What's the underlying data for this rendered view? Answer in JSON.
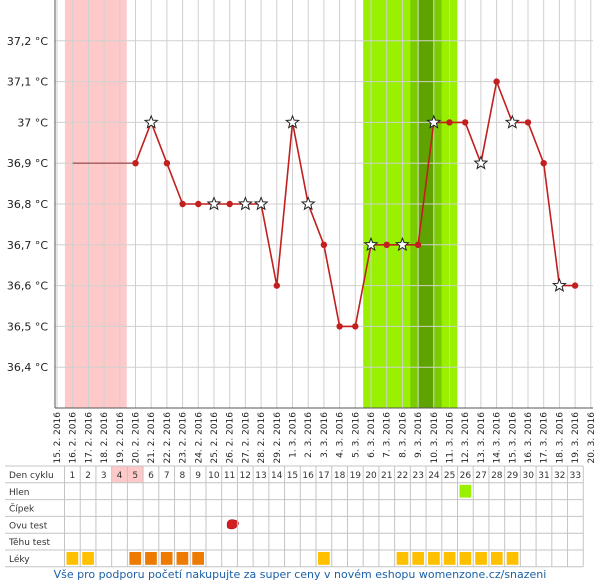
{
  "colors": {
    "line": "#c21f1f",
    "menstruation": "#ffc9c9",
    "fertile": "#99f000",
    "fertile_dark": "#7acc00",
    "fertile_darker": "#5fa300",
    "med": "#ffc000",
    "med_dark": "#ef7a00",
    "hien": "#99f000",
    "grid": "#d0d0d0"
  },
  "chart_data": {
    "type": "line",
    "ylim": [
      36.3,
      37.3
    ],
    "y_ticks": [
      "36,4 °C",
      "36,5 °C",
      "36,6 °C",
      "36,7 °C",
      "36,8 °C",
      "36,9 °C",
      "37 °C",
      "37,1 °C",
      "37,2 °C"
    ],
    "dates": [
      "15. 2. 2016",
      "16. 2. 2016",
      "17. 2. 2016",
      "18. 2. 2016",
      "19. 2. 2016",
      "20. 2. 2016",
      "21. 2. 2016",
      "22. 2. 2016",
      "23. 2. 2016",
      "24. 2. 2016",
      "25. 2. 2016",
      "26. 2. 2016",
      "27. 2. 2016",
      "28. 2. 2016",
      "29. 2. 2016",
      "1. 3. 2016",
      "2. 3. 2016",
      "3. 3. 2016",
      "4. 3. 2016",
      "5. 3. 2016",
      "6. 3. 2016",
      "7. 3. 2016",
      "8. 3. 2016",
      "9. 3. 2016",
      "10. 3. 2016",
      "11. 3. 2016",
      "12. 3. 2016",
      "13. 3. 2016",
      "14. 3. 2016",
      "15. 3. 2016",
      "16. 3. 2016",
      "17. 3. 2016",
      "18. 3. 2016",
      "19. 3. 2016",
      "20. 3. 2016"
    ],
    "temps": [
      null,
      36.9,
      36.9,
      36.9,
      36.9,
      36.9,
      37.0,
      36.9,
      36.8,
      36.8,
      36.8,
      36.8,
      36.8,
      36.8,
      36.6,
      37.0,
      36.8,
      36.7,
      36.5,
      36.5,
      36.7,
      36.7,
      36.7,
      36.7,
      37.0,
      37.0,
      37.0,
      36.9,
      37.1,
      37.0,
      37.0,
      36.9,
      36.6,
      36.6,
      null
    ],
    "star_days": [
      6,
      10,
      12,
      13,
      15,
      16,
      20,
      22,
      24,
      27,
      29,
      32
    ],
    "dot_days": [
      5,
      7,
      8,
      9,
      11,
      14,
      17,
      18,
      19,
      21,
      23,
      25,
      26,
      28,
      30,
      31,
      33
    ],
    "flat_segment_days": [
      1,
      5
    ],
    "menstruation_range": [
      1,
      4
    ],
    "fertile_range": [
      20,
      25
    ],
    "fertile_dark_range": [
      23,
      24
    ]
  },
  "table": {
    "rows": [
      "Den cyklu",
      "Hlen",
      "Čípek",
      "Ovu test",
      "Těhu test",
      "Léky"
    ],
    "cycle_days": [
      "1",
      "2",
      "3",
      "4",
      "5",
      "6",
      "7",
      "8",
      "9",
      "10",
      "11",
      "12",
      "13",
      "14",
      "15",
      "16",
      "17",
      "18",
      "19",
      "20",
      "21",
      "22",
      "23",
      "24",
      "25",
      "26",
      "27",
      "28",
      "29",
      "30",
      "31",
      "32",
      "33"
    ],
    "highlighted_cycle_days": [
      4,
      5
    ],
    "hien_days": [
      26
    ],
    "ovu_test_days": [
      11
    ],
    "med_days_dark": [
      5,
      6,
      7,
      8,
      9
    ],
    "med_days_light": [
      1,
      2,
      17,
      22,
      23,
      24,
      25,
      26,
      27,
      28,
      29
    ]
  },
  "footer_text": "Vše pro podporu početí nakupujte za super ceny v novém eshopu womenzone.cz/snazeni"
}
